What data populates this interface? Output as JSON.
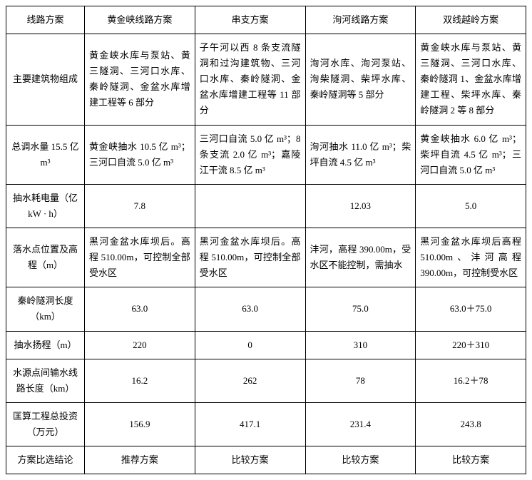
{
  "table": {
    "columns": [
      "线路方案",
      "黄金峡线路方案",
      "串支方案",
      "洵河线路方案",
      "双线越岭方案"
    ],
    "rows": [
      {
        "label": "主要建筑物组成",
        "align": "left",
        "values": [
          "黄金峡水库与泵站、黄三隧洞、三河口水库、秦岭隧洞、金盆水库增建工程等 6 部分",
          "子午河以西 8 条支流隧洞和过沟建筑物、三河口水库、秦岭隧洞、金盆水库增建工程等 11 部分",
          "洵河水库、洵河泵站、洵柴隧洞、柴坪水库、秦岭隧洞等 5 部分",
          "黄金峡水库与泵站、黄三隧洞、三河口水库、秦岭隧洞 1、金盆水库增建工程、柴坪水库、秦岭隧洞 2 等 8 部分"
        ]
      },
      {
        "label": "总调水量 15.5 亿 m³",
        "align": "left",
        "values": [
          "黄金峡抽水 10.5 亿 m³；三河口自流 5.0 亿 m³",
          "三河口自流 5.0 亿 m³；8 条支流 2.0 亿 m³；嘉陵江干流 8.5 亿 m³",
          "洵河抽水 11.0 亿 m³；柴坪自流 4.5 亿 m³",
          "黄金峡抽水 6.0 亿 m³；柴坪自流 4.5 亿 m³；三河口自流 5.0 亿 m³"
        ]
      },
      {
        "label": "抽水耗电量（亿 kW · h）",
        "align": "center",
        "values": [
          "7.8",
          "",
          "12.03",
          "5.0"
        ]
      },
      {
        "label": "落水点位置及高程（m）",
        "align": "left",
        "values": [
          "黑河金盆水库坝后。高程 510.00m，可控制全部受水区",
          "黑河金盆水库坝后。高程 510.00m，可控制全部受水区",
          "沣河，高程 390.00m，受水区不能控制，需抽水",
          "黑河金盆水库坝后高程 510.00m、沣河高程 390.00m，可控制受水区"
        ]
      },
      {
        "label": "秦岭隧洞长度（km）",
        "align": "center",
        "values": [
          "63.0",
          "63.0",
          "75.0",
          "63.0＋75.0"
        ]
      },
      {
        "label": "抽水扬程（m）",
        "align": "center",
        "values": [
          "220",
          "0",
          "310",
          "220＋310"
        ]
      },
      {
        "label": "水源点间输水线路长度（km）",
        "align": "center",
        "values": [
          "16.2",
          "262",
          "78",
          "16.2＋78"
        ]
      },
      {
        "label": "匡算工程总投资（万元）",
        "align": "center",
        "values": [
          "156.9",
          "417.1",
          "231.4",
          "243.8"
        ]
      },
      {
        "label": "方案比选结论",
        "align": "center",
        "values": [
          "推荐方案",
          "比较方案",
          "比较方案",
          "比较方案"
        ]
      }
    ],
    "styling": {
      "border_color": "#000000",
      "background_color": "#ffffff",
      "text_color": "#000000",
      "font_size": 13,
      "line_height": 1.7,
      "font_family": "SimSun"
    }
  }
}
